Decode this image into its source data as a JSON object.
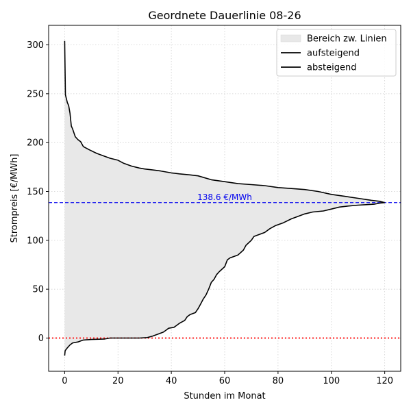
{
  "chart_data": {
    "type": "line",
    "title": "Geordnete Dauerlinie 08-26",
    "xlabel": "Stunden im Monat",
    "ylabel": "Strompreis [€/MWh]",
    "xlim": [
      -6,
      126
    ],
    "ylim": [
      -34,
      320
    ],
    "x_ticks": [
      0,
      20,
      40,
      60,
      80,
      100,
      120
    ],
    "y_ticks": [
      0,
      50,
      100,
      150,
      200,
      250,
      300
    ],
    "grid": true,
    "legend_position": "top-right",
    "legend": [
      {
        "label": "Bereich zw. Linien",
        "kind": "patch",
        "color": "#e8e8e8"
      },
      {
        "label": "aufsteigend",
        "kind": "line",
        "color": "#000000"
      },
      {
        "label": "absteigend",
        "kind": "line",
        "color": "#000000"
      }
    ],
    "reference_lines": [
      {
        "axis": "y",
        "value": 138.6,
        "label": "138.6 €/MWh",
        "color": "#0000ee",
        "style": "dashed"
      },
      {
        "axis": "y",
        "value": 0,
        "label": "",
        "color": "#ff0000",
        "style": "dotted"
      }
    ],
    "series": [
      {
        "name": "aufsteigend",
        "color": "#000000",
        "points": [
          [
            0,
            -18
          ],
          [
            0.2,
            -13
          ],
          [
            1,
            -10
          ],
          [
            2,
            -7
          ],
          [
            3,
            -5
          ],
          [
            5,
            -4
          ],
          [
            6,
            -3
          ],
          [
            7,
            -2
          ],
          [
            10,
            -1.5
          ],
          [
            15,
            -1
          ],
          [
            17,
            0
          ],
          [
            20,
            0
          ],
          [
            25,
            0
          ],
          [
            28,
            0
          ],
          [
            31,
            0.5
          ],
          [
            33,
            2
          ],
          [
            35,
            4
          ],
          [
            37,
            6
          ],
          [
            38,
            8
          ],
          [
            39,
            10
          ],
          [
            41,
            11
          ],
          [
            42,
            13
          ],
          [
            43,
            15
          ],
          [
            45,
            18
          ],
          [
            46,
            22
          ],
          [
            47,
            24
          ],
          [
            49,
            26
          ],
          [
            50,
            30
          ],
          [
            51,
            35
          ],
          [
            52,
            40
          ],
          [
            53,
            44
          ],
          [
            54,
            50
          ],
          [
            55,
            57
          ],
          [
            56,
            60
          ],
          [
            57,
            65
          ],
          [
            58,
            68
          ],
          [
            60,
            73
          ],
          [
            61,
            80
          ],
          [
            62,
            82
          ],
          [
            65,
            85
          ],
          [
            67,
            90
          ],
          [
            68,
            95
          ],
          [
            70,
            100
          ],
          [
            71,
            104
          ],
          [
            73,
            106
          ],
          [
            75,
            108
          ],
          [
            77,
            112
          ],
          [
            79,
            115
          ],
          [
            82,
            118
          ],
          [
            85,
            122
          ],
          [
            87,
            124
          ],
          [
            90,
            127
          ],
          [
            93,
            129
          ],
          [
            97,
            130
          ],
          [
            100,
            132
          ],
          [
            103,
            134
          ],
          [
            106,
            135
          ],
          [
            110,
            136
          ],
          [
            113,
            136.5
          ],
          [
            116,
            137
          ],
          [
            118,
            138
          ],
          [
            120,
            138.6
          ]
        ]
      },
      {
        "name": "absteigend",
        "color": "#000000",
        "points": [
          [
            0,
            304
          ],
          [
            0.3,
            249
          ],
          [
            1,
            241
          ],
          [
            1.5,
            238
          ],
          [
            2,
            230
          ],
          [
            2.5,
            217
          ],
          [
            3,
            214
          ],
          [
            4,
            206
          ],
          [
            5,
            203
          ],
          [
            6,
            201
          ],
          [
            7,
            196
          ],
          [
            9,
            193
          ],
          [
            12,
            189
          ],
          [
            14,
            187
          ],
          [
            17,
            184
          ],
          [
            20,
            182
          ],
          [
            22,
            179
          ],
          [
            25,
            176
          ],
          [
            28,
            174
          ],
          [
            30,
            173
          ],
          [
            33,
            172
          ],
          [
            36,
            171
          ],
          [
            40,
            169
          ],
          [
            43,
            168
          ],
          [
            47,
            167
          ],
          [
            50,
            166
          ],
          [
            55,
            162
          ],
          [
            60,
            160
          ],
          [
            65,
            158
          ],
          [
            70,
            157
          ],
          [
            75,
            156
          ],
          [
            80,
            154
          ],
          [
            85,
            153
          ],
          [
            90,
            152
          ],
          [
            95,
            150
          ],
          [
            100,
            147
          ],
          [
            105,
            145
          ],
          [
            110,
            143
          ],
          [
            115,
            141
          ],
          [
            118,
            140
          ],
          [
            120,
            138.6
          ]
        ]
      }
    ]
  }
}
